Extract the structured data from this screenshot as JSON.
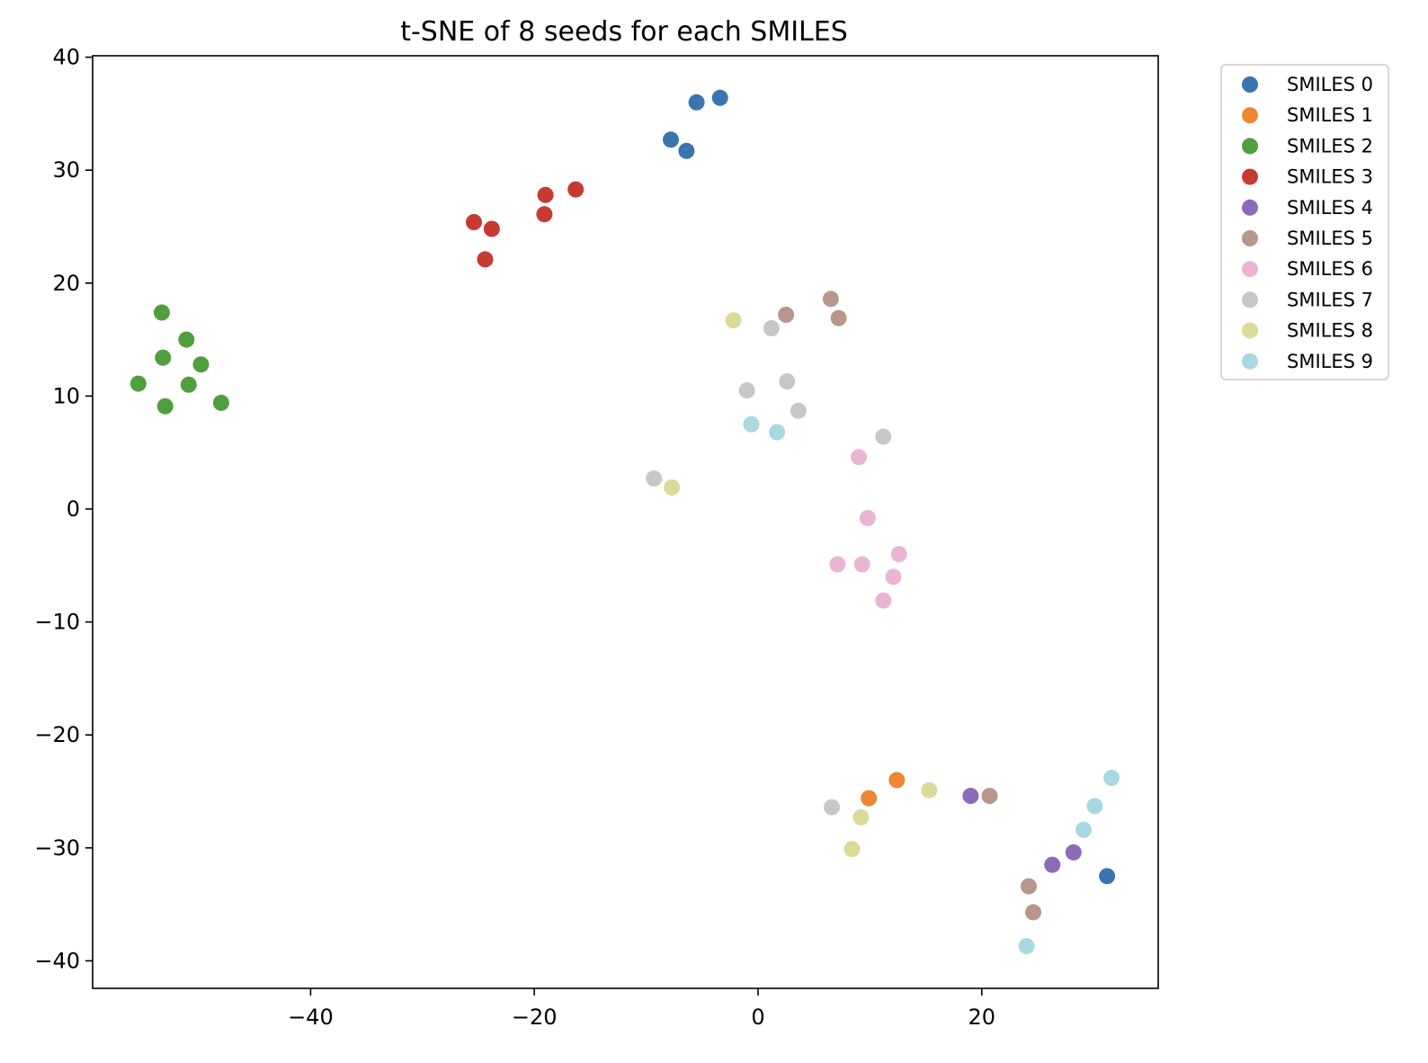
{
  "chart_data": {
    "type": "scatter",
    "title": "t-SNE of 8 seeds for each SMILES",
    "xlabel": "",
    "ylabel": "",
    "xlim": [
      -60,
      36
    ],
    "ylim": [
      -42.5,
      40
    ],
    "xticks": [
      -40,
      -20,
      0,
      20
    ],
    "yticks": [
      40,
      30,
      20,
      10,
      0,
      -10,
      -20,
      -30,
      -40
    ],
    "xtick_labels": [
      "−40",
      "−20",
      "0",
      "20"
    ],
    "ytick_labels": [
      "40",
      "30",
      "20",
      "10",
      "0",
      "−10",
      "−20",
      "−30",
      "−40"
    ],
    "grid": false,
    "legend_position": "outside-upper-right",
    "series": [
      {
        "name": "SMILES 0",
        "color": "#3a75b0",
        "points": [
          [
            -5.5,
            36.0
          ],
          [
            -3.4,
            36.4
          ],
          [
            -7.8,
            32.7
          ],
          [
            -6.4,
            31.7
          ],
          [
            31.2,
            -32.5
          ]
        ]
      },
      {
        "name": "SMILES 1",
        "color": "#ef8632",
        "points": [
          [
            12.4,
            -24.0
          ],
          [
            9.9,
            -25.6
          ]
        ]
      },
      {
        "name": "SMILES 2",
        "color": "#519e3e",
        "points": [
          [
            -53.3,
            17.4
          ],
          [
            -51.1,
            15.0
          ],
          [
            -53.2,
            13.4
          ],
          [
            -49.8,
            12.8
          ],
          [
            -55.4,
            11.1
          ],
          [
            -50.9,
            11.0
          ],
          [
            -53.0,
            9.1
          ],
          [
            -48.0,
            9.4
          ]
        ]
      },
      {
        "name": "SMILES 3",
        "color": "#c63a32",
        "points": [
          [
            -19.0,
            27.8
          ],
          [
            -16.3,
            28.3
          ],
          [
            -25.4,
            25.4
          ],
          [
            -23.8,
            24.8
          ],
          [
            -19.1,
            26.1
          ],
          [
            -24.4,
            22.1
          ]
        ]
      },
      {
        "name": "SMILES 4",
        "color": "#8d6ab8",
        "points": [
          [
            19.0,
            -25.4
          ],
          [
            26.3,
            -31.5
          ],
          [
            28.2,
            -30.4
          ]
        ]
      },
      {
        "name": "SMILES 5",
        "color": "#b8968b",
        "points": [
          [
            6.5,
            18.6
          ],
          [
            7.2,
            16.9
          ],
          [
            2.5,
            17.2
          ],
          [
            20.7,
            -25.4
          ],
          [
            24.2,
            -33.4
          ],
          [
            24.6,
            -35.7
          ]
        ]
      },
      {
        "name": "SMILES 6",
        "color": "#eab5d3",
        "points": [
          [
            9.0,
            4.6
          ],
          [
            9.8,
            -0.8
          ],
          [
            12.6,
            -4.0
          ],
          [
            7.1,
            -4.9
          ],
          [
            9.3,
            -4.9
          ],
          [
            12.1,
            -6.0
          ],
          [
            11.2,
            -8.1
          ]
        ]
      },
      {
        "name": "SMILES 7",
        "color": "#c7c7c7",
        "points": [
          [
            1.2,
            16.0
          ],
          [
            -1.0,
            10.5
          ],
          [
            2.6,
            11.3
          ],
          [
            3.6,
            8.7
          ],
          [
            11.2,
            6.4
          ],
          [
            -9.3,
            2.7
          ],
          [
            6.6,
            -26.4
          ]
        ]
      },
      {
        "name": "SMILES 8",
        "color": "#dbda98",
        "points": [
          [
            -2.2,
            16.7
          ],
          [
            -7.7,
            1.9
          ],
          [
            15.3,
            -24.9
          ],
          [
            9.2,
            -27.3
          ],
          [
            8.4,
            -30.1
          ]
        ]
      },
      {
        "name": "SMILES 9",
        "color": "#a8d8e2",
        "points": [
          [
            -0.6,
            7.5
          ],
          [
            1.7,
            6.8
          ],
          [
            31.6,
            -23.8
          ],
          [
            30.1,
            -26.3
          ],
          [
            29.1,
            -28.4
          ],
          [
            24.0,
            -38.7
          ]
        ]
      }
    ]
  }
}
